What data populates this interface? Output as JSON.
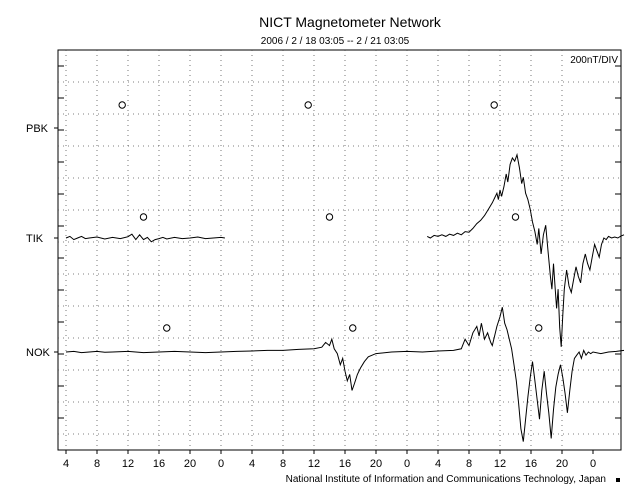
{
  "chart_data": {
    "type": "line",
    "title": "NICT Magnetometer Network",
    "subtitle": "2006 / 2 / 18   03:05 --  2 / 21   03:05",
    "scale_label": "200nT/DIV",
    "footer": "National Institute of Information and Communications Technology, Japan",
    "x_tick_labels": [
      "4",
      "8",
      "12",
      "16",
      "20",
      "0",
      "4",
      "8",
      "12",
      "16",
      "20",
      "0",
      "4",
      "8",
      "12",
      "16",
      "20",
      "0"
    ],
    "station_labels": [
      "PBK",
      "TIK",
      "NOK"
    ],
    "x_range_hours": [
      0,
      72
    ],
    "midnight_markers_hours": [
      8.25,
      32.25,
      56.25
    ],
    "series": [
      {
        "name": "PBK",
        "values": []
      },
      {
        "name": "TIK",
        "gaps": [
          [
            20.5,
            46.6
          ]
        ],
        "values": [
          [
            0.0,
            0.0
          ],
          [
            0.5,
            0.05
          ],
          [
            1.0,
            -0.05
          ],
          [
            1.5,
            0.0
          ],
          [
            2.0,
            0.05
          ],
          [
            2.5,
            -0.02
          ],
          [
            3.0,
            0.0
          ],
          [
            4.0,
            0.03
          ],
          [
            5.0,
            -0.03
          ],
          [
            6.0,
            0.02
          ],
          [
            7.0,
            -0.02
          ],
          [
            8.0,
            0.04
          ],
          [
            8.5,
            0.12
          ],
          [
            9.0,
            -0.05
          ],
          [
            9.5,
            0.1
          ],
          [
            10.0,
            -0.05
          ],
          [
            10.5,
            0.02
          ],
          [
            11.0,
            -0.12
          ],
          [
            11.5,
            -0.05
          ],
          [
            12.0,
            -0.02
          ],
          [
            12.5,
            0.02
          ],
          [
            13.0,
            -0.03
          ],
          [
            14.0,
            0.02
          ],
          [
            15.0,
            -0.02
          ],
          [
            16.0,
            0.0
          ],
          [
            17.0,
            0.03
          ],
          [
            18.0,
            -0.02
          ],
          [
            19.0,
            0.0
          ],
          [
            20.0,
            0.02
          ],
          [
            20.5,
            0.0
          ],
          [
            46.6,
            0.05
          ],
          [
            47.0,
            0.0
          ],
          [
            47.5,
            0.08
          ],
          [
            48.0,
            0.05
          ],
          [
            48.5,
            0.1
          ],
          [
            49.0,
            0.05
          ],
          [
            49.5,
            0.12
          ],
          [
            50.0,
            0.08
          ],
          [
            50.5,
            0.15
          ],
          [
            51.0,
            0.1
          ],
          [
            51.5,
            0.2
          ],
          [
            52.0,
            0.18
          ],
          [
            52.5,
            0.3
          ],
          [
            53.0,
            0.45
          ],
          [
            53.5,
            0.55
          ],
          [
            54.0,
            0.7
          ],
          [
            54.5,
            0.9
          ],
          [
            55.0,
            1.1
          ],
          [
            55.3,
            1.25
          ],
          [
            55.6,
            1.4
          ],
          [
            55.8,
            1.2
          ],
          [
            56.0,
            1.5
          ],
          [
            56.2,
            1.3
          ],
          [
            56.5,
            1.6
          ],
          [
            56.8,
            2.0
          ],
          [
            57.0,
            1.75
          ],
          [
            57.3,
            2.3
          ],
          [
            57.6,
            2.5
          ],
          [
            57.9,
            2.4
          ],
          [
            58.2,
            2.6
          ],
          [
            58.5,
            2.2
          ],
          [
            58.8,
            1.7
          ],
          [
            59.0,
            1.9
          ],
          [
            59.3,
            1.4
          ],
          [
            59.6,
            1.2
          ],
          [
            59.9,
            0.9
          ],
          [
            60.2,
            0.5
          ],
          [
            60.5,
            0.2
          ],
          [
            60.8,
            -0.2
          ],
          [
            61.0,
            0.3
          ],
          [
            61.3,
            -0.5
          ],
          [
            61.6,
            0.1
          ],
          [
            61.9,
            0.4
          ],
          [
            62.2,
            -0.4
          ],
          [
            62.5,
            -1.2
          ],
          [
            62.7,
            -1.6
          ],
          [
            62.9,
            -0.8
          ],
          [
            63.1,
            -1.5
          ],
          [
            63.3,
            -2.2
          ],
          [
            63.5,
            -1.6
          ],
          [
            63.7,
            -2.8
          ],
          [
            63.9,
            -3.4
          ],
          [
            64.1,
            -2.4
          ],
          [
            64.3,
            -1.6
          ],
          [
            64.6,
            -1.0
          ],
          [
            64.9,
            -1.5
          ],
          [
            65.2,
            -1.7
          ],
          [
            65.5,
            -1.3
          ],
          [
            65.8,
            -0.9
          ],
          [
            66.1,
            -1.2
          ],
          [
            66.4,
            -1.4
          ],
          [
            66.7,
            -0.8
          ],
          [
            67.0,
            -0.5
          ],
          [
            67.3,
            -0.8
          ],
          [
            67.6,
            -1.0
          ],
          [
            67.9,
            -0.6
          ],
          [
            68.2,
            -0.2
          ],
          [
            68.5,
            -0.4
          ],
          [
            68.8,
            -0.6
          ],
          [
            69.1,
            -0.2
          ],
          [
            69.4,
            0.0
          ],
          [
            69.7,
            -0.05
          ],
          [
            70.0,
            0.05
          ],
          [
            70.4,
            0.0
          ],
          [
            70.8,
            0.03
          ],
          [
            71.2,
            0.0
          ],
          [
            71.6,
            0.06
          ],
          [
            72.0,
            0.1
          ]
        ]
      },
      {
        "name": "NOK",
        "values": [
          [
            0.0,
            0.0
          ],
          [
            1.0,
            0.02
          ],
          [
            2.0,
            -0.02
          ],
          [
            3.0,
            0.0
          ],
          [
            4.0,
            0.02
          ],
          [
            5.0,
            -0.01
          ],
          [
            6.0,
            0.0
          ],
          [
            8.0,
            0.02
          ],
          [
            10.0,
            -0.02
          ],
          [
            12.0,
            0.0
          ],
          [
            14.0,
            0.02
          ],
          [
            16.0,
            0.0
          ],
          [
            18.0,
            -0.02
          ],
          [
            20.0,
            0.0
          ],
          [
            22.0,
            0.02
          ],
          [
            24.0,
            0.03
          ],
          [
            26.0,
            0.05
          ],
          [
            28.0,
            0.05
          ],
          [
            30.0,
            0.08
          ],
          [
            32.0,
            0.1
          ],
          [
            33.0,
            0.15
          ],
          [
            33.5,
            0.3
          ],
          [
            34.0,
            0.2
          ],
          [
            34.3,
            0.4
          ],
          [
            34.6,
            0.1
          ],
          [
            35.0,
            -0.05
          ],
          [
            35.4,
            -0.4
          ],
          [
            35.7,
            -0.2
          ],
          [
            36.0,
            -0.6
          ],
          [
            36.3,
            -0.9
          ],
          [
            36.6,
            -0.7
          ],
          [
            36.9,
            -1.2
          ],
          [
            37.2,
            -1.0
          ],
          [
            37.6,
            -0.7
          ],
          [
            38.0,
            -0.5
          ],
          [
            38.5,
            -0.3
          ],
          [
            39.0,
            -0.15
          ],
          [
            40.0,
            -0.05
          ],
          [
            42.0,
            0.0
          ],
          [
            44.0,
            0.02
          ],
          [
            46.0,
            0.0
          ],
          [
            48.0,
            0.03
          ],
          [
            50.0,
            0.05
          ],
          [
            51.0,
            0.1
          ],
          [
            51.5,
            0.4
          ],
          [
            52.0,
            0.2
          ],
          [
            52.5,
            0.6
          ],
          [
            53.0,
            0.8
          ],
          [
            53.3,
            0.5
          ],
          [
            53.6,
            0.9
          ],
          [
            54.0,
            0.4
          ],
          [
            54.4,
            0.6
          ],
          [
            54.8,
            0.3
          ],
          [
            55.0,
            0.2
          ],
          [
            55.3,
            0.5
          ],
          [
            55.6,
            0.8
          ],
          [
            56.0,
            1.1
          ],
          [
            56.3,
            1.4
          ],
          [
            56.6,
            0.9
          ],
          [
            56.9,
            0.7
          ],
          [
            57.2,
            0.4
          ],
          [
            57.5,
            0.1
          ],
          [
            57.8,
            -0.4
          ],
          [
            58.1,
            -0.9
          ],
          [
            58.4,
            -1.6
          ],
          [
            58.7,
            -2.4
          ],
          [
            59.0,
            -2.8
          ],
          [
            59.3,
            -2.1
          ],
          [
            59.6,
            -1.4
          ],
          [
            59.9,
            -0.8
          ],
          [
            60.2,
            -0.3
          ],
          [
            60.5,
            -0.9
          ],
          [
            60.8,
            -1.5
          ],
          [
            61.1,
            -2.1
          ],
          [
            61.4,
            -1.2
          ],
          [
            61.7,
            -0.6
          ],
          [
            62.0,
            -1.3
          ],
          [
            62.3,
            -1.9
          ],
          [
            62.6,
            -2.7
          ],
          [
            62.9,
            -1.8
          ],
          [
            63.2,
            -1.1
          ],
          [
            63.5,
            -0.7
          ],
          [
            63.8,
            -0.4
          ],
          [
            64.1,
            -0.8
          ],
          [
            64.4,
            -1.3
          ],
          [
            64.7,
            -1.9
          ],
          [
            65.0,
            -1.2
          ],
          [
            65.3,
            -0.6
          ],
          [
            65.6,
            -0.2
          ],
          [
            65.9,
            -0.1
          ],
          [
            66.2,
            0.0
          ],
          [
            66.5,
            -0.2
          ],
          [
            66.8,
            0.05
          ],
          [
            67.1,
            -0.1
          ],
          [
            67.4,
            0.0
          ],
          [
            67.7,
            -0.05
          ],
          [
            68.0,
            0.0
          ],
          [
            69.0,
            -0.05
          ],
          [
            70.0,
            0.0
          ],
          [
            71.0,
            0.02
          ],
          [
            72.0,
            0.05
          ]
        ]
      }
    ]
  }
}
